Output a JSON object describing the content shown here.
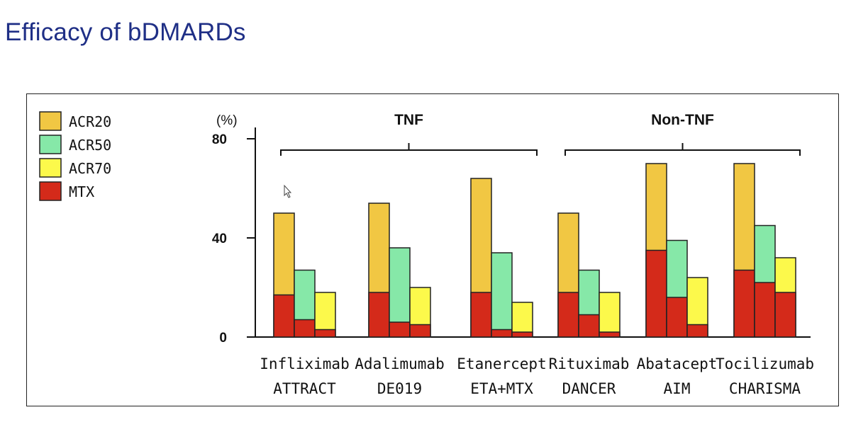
{
  "title": "Efficacy of bDMARDs",
  "colors": {
    "acr20": "#f1c743",
    "acr50": "#86e8a8",
    "acr70": "#fcf94b",
    "mtx": "#d42a1a",
    "stroke": "#222222"
  },
  "chart_data": {
    "type": "bar",
    "title": "Efficacy of bDMARDs",
    "ylabel": "(%)",
    "ylim": [
      0,
      80
    ],
    "yticks": [
      "0",
      "40",
      "80"
    ],
    "legend": [
      "ACR20",
      "ACR50",
      "ACR70",
      "MTX"
    ],
    "groups": [
      {
        "label": "TNF",
        "span": [
          0,
          2
        ]
      },
      {
        "label": "Non-TNF",
        "span": [
          3,
          5
        ]
      }
    ],
    "categories": [
      {
        "drug": "Infliximab",
        "trial": "ATTRACT"
      },
      {
        "drug": "Adalimumab",
        "trial": "DE019"
      },
      {
        "drug": "Etanercept",
        "trial": "ETA+MTX"
      },
      {
        "drug": "Rituximab",
        "trial": "DANCER"
      },
      {
        "drug": "Abatacept",
        "trial": "AIM"
      },
      {
        "drug": "Tocilizumab",
        "trial": "CHARISMA"
      }
    ],
    "series": [
      {
        "name": "ACR20",
        "values": [
          50,
          54,
          64,
          50,
          70,
          70
        ]
      },
      {
        "name": "ACR50",
        "values": [
          27,
          36,
          34,
          27,
          39,
          45
        ]
      },
      {
        "name": "ACR70",
        "values": [
          18,
          20,
          14,
          18,
          24,
          32
        ]
      }
    ],
    "mtx_series": [
      {
        "name": "MTX (ACR20)",
        "values": [
          17,
          18,
          18,
          18,
          35,
          27
        ]
      },
      {
        "name": "MTX (ACR50)",
        "values": [
          7,
          6,
          3,
          9,
          16,
          22
        ]
      },
      {
        "name": "MTX (ACR70)",
        "values": [
          3,
          5,
          2,
          2,
          5,
          18
        ]
      }
    ]
  }
}
